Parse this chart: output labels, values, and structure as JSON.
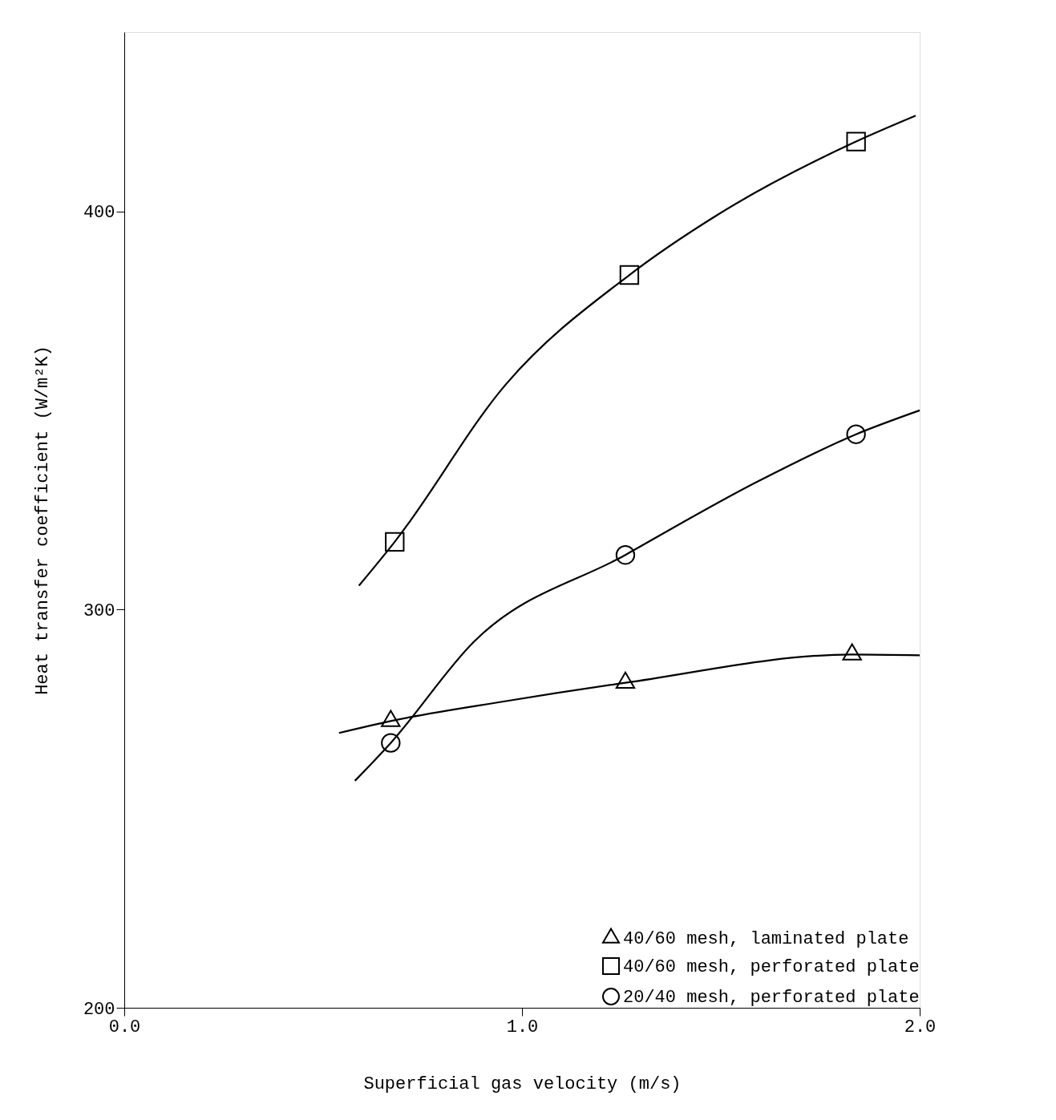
{
  "chart_data": {
    "type": "scatter",
    "xlabel": "Superficial gas velocity (m/s)",
    "ylabel": "Heat transfer coefficient (W/m²K)",
    "xlim": [
      0,
      2.0
    ],
    "ylim": [
      200,
      445
    ],
    "xticks": [
      {
        "value": 0,
        "label": "0.0"
      },
      {
        "value": 1,
        "label": "1.0"
      },
      {
        "value": 2,
        "label": "2.0"
      }
    ],
    "yticks": [
      200,
      300,
      400
    ],
    "grid": false,
    "legend": "bottom right",
    "series": [
      {
        "name": "40/60 mesh, laminated plate",
        "marker": "triangle",
        "color": "#000000",
        "x": [
          0.67,
          1.26,
          1.83
        ],
        "values": [
          272,
          281.6,
          288.7
        ]
      },
      {
        "name": "40/60 mesh, perforated plate",
        "marker": "square",
        "color": "#000000",
        "x": [
          0.68,
          1.27,
          1.84
        ],
        "values": [
          317,
          384,
          417.5
        ]
      },
      {
        "name": "20/40 mesh, perforated plate",
        "marker": "circle",
        "color": "#000000",
        "x": [
          0.67,
          1.26,
          1.84
        ],
        "values": [
          266.5,
          313.7,
          344
        ]
      },
      {
        "type": "line",
        "color": "#000000",
        "x": [
          0.54,
          0.67,
          0.96,
          1.26,
          1.83,
          2.0
        ],
        "values": [
          269,
          272,
          277,
          281.6,
          288.7,
          288.5
        ]
      },
      {
        "type": "line",
        "color": "#000000",
        "x": [
          0.59,
          0.68,
          0.96,
          1.27,
          1.49,
          1.84,
          1.99
        ],
        "values": [
          306,
          317,
          356.6,
          384,
          399,
          417.5,
          424
        ]
      },
      {
        "type": "line",
        "color": "#000000",
        "x": [
          0.58,
          0.67,
          0.88,
          1.26,
          1.59,
          1.84,
          2.0
        ],
        "values": [
          257,
          266.5,
          292,
          313.7,
          332,
          344,
          350
        ]
      }
    ]
  }
}
